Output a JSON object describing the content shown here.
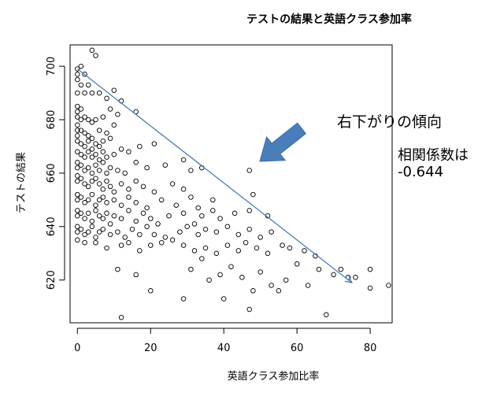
{
  "chart_data": {
    "type": "scatter",
    "title": "テストの結果と英語クラス参加率",
    "xlabel": "英語クラス参加比率",
    "ylabel": "テストの結果",
    "xlim": [
      -2,
      86
    ],
    "ylim": [
      604,
      708
    ],
    "x_ticks": [
      0,
      20,
      40,
      60,
      80
    ],
    "y_ticks": [
      620,
      640,
      660,
      680,
      700
    ],
    "trend_line": {
      "from": [
        0,
        699
      ],
      "to": [
        75,
        619
      ],
      "color": "#4a7ebb"
    },
    "arrow_color": "#4a7ebb",
    "point_color": "#000000",
    "annotations": {
      "trend": "右下がりの傾向",
      "corr_label": "相関係数は",
      "corr_value": "-0.644"
    },
    "points": [
      [
        4,
        706
      ],
      [
        5,
        704
      ],
      [
        1,
        700
      ],
      [
        0,
        699
      ],
      [
        0,
        697
      ],
      [
        2,
        697
      ],
      [
        0,
        695
      ],
      [
        1,
        693
      ],
      [
        3,
        693
      ],
      [
        4,
        690
      ],
      [
        10,
        691
      ],
      [
        0,
        690
      ],
      [
        2,
        690
      ],
      [
        6,
        690
      ],
      [
        8,
        688
      ],
      [
        12,
        687
      ],
      [
        0,
        685
      ],
      [
        1,
        684
      ],
      [
        0,
        683
      ],
      [
        0,
        681
      ],
      [
        1,
        680
      ],
      [
        2,
        681
      ],
      [
        3,
        680
      ],
      [
        4,
        679
      ],
      [
        5,
        680
      ],
      [
        7,
        681
      ],
      [
        9,
        684
      ],
      [
        11,
        682
      ],
      [
        16,
        683
      ],
      [
        0,
        678
      ],
      [
        0,
        676
      ],
      [
        0,
        674
      ],
      [
        1,
        676
      ],
      [
        2,
        675
      ],
      [
        3,
        674
      ],
      [
        4,
        673
      ],
      [
        6,
        676
      ],
      [
        8,
        675
      ],
      [
        10,
        678
      ],
      [
        0,
        672
      ],
      [
        1,
        671
      ],
      [
        2,
        670
      ],
      [
        3,
        672
      ],
      [
        4,
        669
      ],
      [
        5,
        671
      ],
      [
        6,
        670
      ],
      [
        7,
        672
      ],
      [
        9,
        673
      ],
      [
        0,
        668
      ],
      [
        1,
        667
      ],
      [
        2,
        666
      ],
      [
        3,
        668
      ],
      [
        4,
        666
      ],
      [
        5,
        667
      ],
      [
        6,
        665
      ],
      [
        7,
        668
      ],
      [
        8,
        666
      ],
      [
        10,
        667
      ],
      [
        12,
        669
      ],
      [
        14,
        668
      ],
      [
        17,
        670
      ],
      [
        21,
        671
      ],
      [
        0,
        664
      ],
      [
        0,
        662
      ],
      [
        1,
        663
      ],
      [
        2,
        661
      ],
      [
        3,
        662
      ],
      [
        4,
        660
      ],
      [
        5,
        663
      ],
      [
        6,
        661
      ],
      [
        7,
        664
      ],
      [
        8,
        660
      ],
      [
        9,
        662
      ],
      [
        11,
        661
      ],
      [
        13,
        660
      ],
      [
        16,
        664
      ],
      [
        19,
        662
      ],
      [
        24,
        663
      ],
      [
        29,
        665
      ],
      [
        31,
        661
      ],
      [
        34,
        662
      ],
      [
        0,
        659
      ],
      [
        0,
        657
      ],
      [
        1,
        658
      ],
      [
        2,
        656
      ],
      [
        3,
        655
      ],
      [
        4,
        657
      ],
      [
        5,
        658
      ],
      [
        6,
        656
      ],
      [
        7,
        654
      ],
      [
        8,
        657
      ],
      [
        9,
        655
      ],
      [
        10,
        653
      ],
      [
        12,
        656
      ],
      [
        14,
        654
      ],
      [
        16,
        657
      ],
      [
        18,
        655
      ],
      [
        21,
        653
      ],
      [
        26,
        656
      ],
      [
        29,
        654
      ],
      [
        47,
        661
      ],
      [
        0,
        652
      ],
      [
        0,
        650
      ],
      [
        1,
        651
      ],
      [
        2,
        649
      ],
      [
        3,
        650
      ],
      [
        4,
        652
      ],
      [
        5,
        648
      ],
      [
        6,
        650
      ],
      [
        7,
        651
      ],
      [
        8,
        649
      ],
      [
        10,
        650
      ],
      [
        12,
        648
      ],
      [
        14,
        651
      ],
      [
        16,
        649
      ],
      [
        19,
        647
      ],
      [
        23,
        650
      ],
      [
        27,
        648
      ],
      [
        31,
        651
      ],
      [
        33,
        647
      ],
      [
        37,
        650
      ],
      [
        48,
        652
      ],
      [
        0,
        646
      ],
      [
        0,
        644
      ],
      [
        1,
        645
      ],
      [
        2,
        643
      ],
      [
        3,
        645
      ],
      [
        4,
        642
      ],
      [
        5,
        646
      ],
      [
        6,
        644
      ],
      [
        7,
        643
      ],
      [
        8,
        645
      ],
      [
        9,
        641
      ],
      [
        10,
        644
      ],
      [
        12,
        643
      ],
      [
        14,
        646
      ],
      [
        16,
        642
      ],
      [
        18,
        645
      ],
      [
        20,
        643
      ],
      [
        22,
        641
      ],
      [
        25,
        644
      ],
      [
        29,
        645
      ],
      [
        32,
        641
      ],
      [
        34,
        644
      ],
      [
        37,
        646
      ],
      [
        39,
        643
      ],
      [
        43,
        645
      ],
      [
        47,
        646
      ],
      [
        52,
        644
      ],
      [
        0,
        640
      ],
      [
        0,
        638
      ],
      [
        1,
        639
      ],
      [
        2,
        637
      ],
      [
        3,
        638
      ],
      [
        4,
        640
      ],
      [
        5,
        636
      ],
      [
        6,
        638
      ],
      [
        7,
        639
      ],
      [
        9,
        637
      ],
      [
        11,
        638
      ],
      [
        13,
        636
      ],
      [
        15,
        639
      ],
      [
        17,
        637
      ],
      [
        19,
        640
      ],
      [
        21,
        637
      ],
      [
        24,
        636
      ],
      [
        28,
        638
      ],
      [
        30,
        640
      ],
      [
        33,
        637
      ],
      [
        35,
        639
      ],
      [
        38,
        638
      ],
      [
        41,
        640
      ],
      [
        44,
        637
      ],
      [
        47,
        639
      ],
      [
        50,
        636
      ],
      [
        53,
        638
      ],
      [
        0,
        635
      ],
      [
        2,
        634
      ],
      [
        5,
        634
      ],
      [
        8,
        632
      ],
      [
        12,
        633
      ],
      [
        14,
        634
      ],
      [
        17,
        631
      ],
      [
        20,
        633
      ],
      [
        23,
        634
      ],
      [
        26,
        635
      ],
      [
        29,
        633
      ],
      [
        32,
        631
      ],
      [
        35,
        632
      ],
      [
        38,
        630
      ],
      [
        41,
        633
      ],
      [
        44,
        631
      ],
      [
        46,
        634
      ],
      [
        49,
        632
      ],
      [
        52,
        630
      ],
      [
        56,
        633
      ],
      [
        58,
        632
      ],
      [
        62,
        631
      ],
      [
        65,
        629
      ],
      [
        11,
        624
      ],
      [
        16,
        622
      ],
      [
        20,
        616
      ],
      [
        29,
        613
      ],
      [
        31,
        624
      ],
      [
        34,
        628
      ],
      [
        36,
        620
      ],
      [
        39,
        622
      ],
      [
        42,
        625
      ],
      [
        40,
        613
      ],
      [
        45,
        621
      ],
      [
        47,
        609
      ],
      [
        48,
        616
      ],
      [
        50,
        623
      ],
      [
        53,
        618
      ],
      [
        55,
        616
      ],
      [
        57,
        620
      ],
      [
        60,
        626
      ],
      [
        63,
        618
      ],
      [
        66,
        624
      ],
      [
        68,
        607
      ],
      [
        70,
        622
      ],
      [
        72,
        624
      ],
      [
        74,
        621
      ],
      [
        76,
        621
      ],
      [
        80,
        617
      ],
      [
        80,
        624
      ],
      [
        85,
        618
      ],
      [
        12,
        606
      ]
    ]
  }
}
